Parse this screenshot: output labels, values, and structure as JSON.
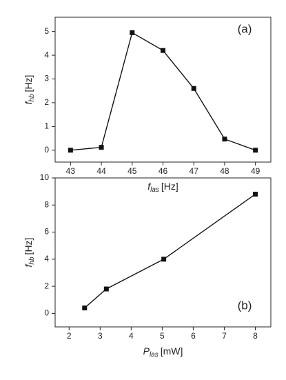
{
  "chart_data": [
    {
      "type": "line",
      "annotation": "(a)",
      "xlabel": {
        "main": "f",
        "sub": "las",
        "unit": "[Hz]"
      },
      "ylabel": {
        "main": "f",
        "sub": "hb",
        "unit": "[Hz]"
      },
      "x": [
        43,
        44,
        45,
        46,
        47,
        48,
        49
      ],
      "series": [
        {
          "color": "#111111",
          "values": [
            0,
            0.12,
            4.95,
            4.2,
            2.6,
            0.47,
            0
          ]
        }
      ],
      "xlim": [
        42.5,
        49.5
      ],
      "ylim": [
        -0.5,
        5.6
      ],
      "xticks": [
        43,
        44,
        45,
        46,
        47,
        48,
        49
      ],
      "yticks": [
        0,
        1,
        2,
        3,
        4,
        5
      ]
    },
    {
      "type": "line",
      "annotation": "(b)",
      "xlabel": {
        "main": "P",
        "sub": "las",
        "unit": "[mW]"
      },
      "ylabel": {
        "main": "f",
        "sub": "hb",
        "unit": "[Hz]"
      },
      "x": [
        2.5,
        3.2,
        5.05,
        8
      ],
      "series": [
        {
          "color": "#111111",
          "values": [
            0.4,
            1.8,
            4.0,
            8.8
          ]
        }
      ],
      "xlim": [
        1.55,
        8.5
      ],
      "ylim": [
        -1,
        10
      ],
      "xticks": [
        2,
        3,
        4,
        5,
        6,
        7,
        8
      ],
      "yticks": [
        0,
        2,
        4,
        6,
        8,
        10
      ]
    }
  ]
}
